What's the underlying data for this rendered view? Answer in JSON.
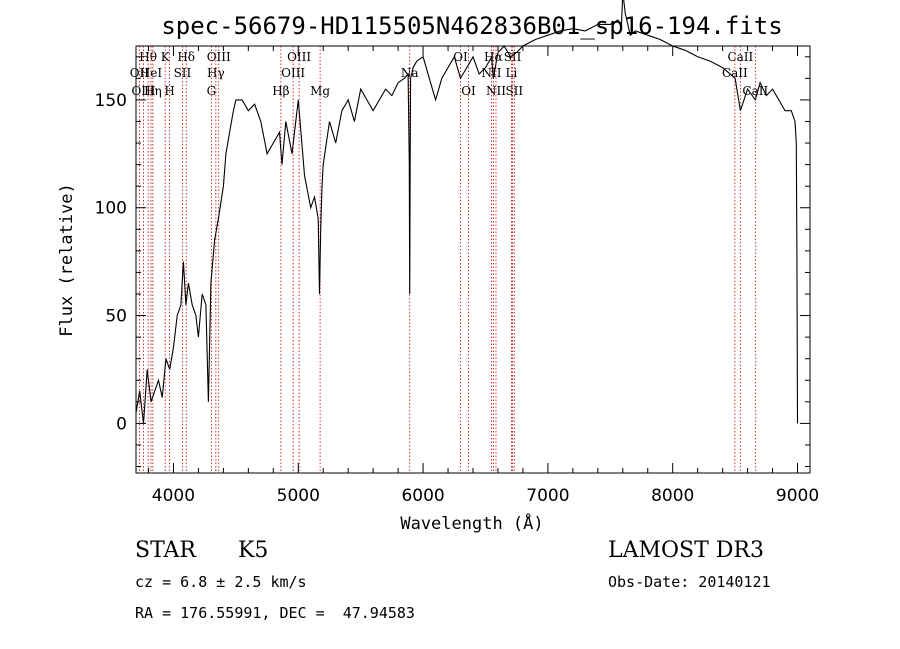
{
  "chart_data": {
    "type": "line",
    "title": "spec-56679-HD115505N462836B01_sp16-194.fits",
    "xlabel": "Wavelength (Å)",
    "ylabel": "Flux (relative)",
    "xlim": [
      3700,
      9100
    ],
    "ylim": [
      -23,
      175
    ],
    "xticks": [
      4000,
      5000,
      6000,
      7000,
      8000,
      9000
    ],
    "yticks": [
      0,
      50,
      100,
      150
    ],
    "series": [
      {
        "x": [
          3700,
          3730,
          3760,
          3790,
          3820,
          3850,
          3880,
          3910,
          3940,
          3970,
          4000,
          4030,
          4060,
          4080,
          4100,
          4120,
          4150,
          4180,
          4200,
          4230,
          4260,
          4280,
          4300,
          4330,
          4360,
          4400,
          4420,
          4450,
          4480,
          4500,
          4550,
          4600,
          4650,
          4700,
          4750,
          4800,
          4850,
          4870,
          4900,
          4950,
          5000,
          5050,
          5100,
          5130,
          5160,
          5170,
          5180,
          5190,
          5200,
          5250,
          5300,
          5350,
          5400,
          5450,
          5500,
          5550,
          5600,
          5650,
          5700,
          5750,
          5800,
          5850,
          5880,
          5890,
          5893,
          5897,
          5900,
          5920,
          5950,
          6000,
          6050,
          6100,
          6150,
          6200,
          6250,
          6300,
          6350,
          6400,
          6450,
          6500,
          6550,
          6562,
          6600,
          6650,
          6700,
          6750,
          6800,
          6900,
          7000,
          7100,
          7200,
          7300,
          7400,
          7500,
          7560,
          7590,
          7600,
          7620,
          7640,
          7660,
          7700,
          7800,
          7900,
          8000,
          8100,
          8200,
          8300,
          8400,
          8500,
          8542,
          8600,
          8662,
          8700,
          8750,
          8800,
          8850,
          8900,
          8950,
          8980,
          8990,
          8995,
          9000
        ],
        "values": [
          5,
          15,
          0,
          25,
          10,
          15,
          20,
          12,
          30,
          25,
          35,
          50,
          55,
          75,
          55,
          65,
          55,
          50,
          40,
          60,
          55,
          10,
          65,
          85,
          95,
          110,
          125,
          135,
          145,
          150,
          150,
          145,
          148,
          140,
          125,
          130,
          135,
          120,
          140,
          125,
          150,
          115,
          100,
          105,
          95,
          60,
          90,
          110,
          120,
          140,
          130,
          145,
          150,
          140,
          155,
          150,
          145,
          150,
          155,
          152,
          158,
          160,
          162,
          120,
          60,
          125,
          160,
          165,
          168,
          170,
          160,
          150,
          160,
          165,
          170,
          160,
          165,
          170,
          162,
          165,
          170,
          160,
          172,
          175,
          170,
          172,
          175,
          178,
          180,
          182,
          183,
          182,
          185,
          185,
          187,
          185,
          200,
          190,
          185,
          180,
          182,
          180,
          178,
          175,
          173,
          170,
          168,
          165,
          160,
          145,
          155,
          150,
          158,
          152,
          155,
          150,
          145,
          145,
          140,
          130,
          80,
          0
        ]
      }
    ],
    "spectral_lines": [
      {
        "name": "Hθ",
        "wavelength": 3797,
        "row": 1
      },
      {
        "name": "OII",
        "wavelength": 3727,
        "row": 2
      },
      {
        "name": "OIII",
        "wavelength": 3760,
        "row": 3
      },
      {
        "name": "HeI",
        "wavelength": 3820,
        "row": 2
      },
      {
        "name": "Hη",
        "wavelength": 3835,
        "row": 3
      },
      {
        "name": "K",
        "wavelength": 3934,
        "row": 1
      },
      {
        "name": "SII",
        "wavelength": 4072,
        "row": 2
      },
      {
        "name": "H",
        "wavelength": 3969,
        "row": 3
      },
      {
        "name": "Hδ",
        "wavelength": 4102,
        "row": 1
      },
      {
        "name": "OIII",
        "wavelength": 4363,
        "row": 1
      },
      {
        "name": "Hγ",
        "wavelength": 4340,
        "row": 2
      },
      {
        "name": "G",
        "wavelength": 4304,
        "row": 3
      },
      {
        "name": "Hβ",
        "wavelength": 4861,
        "row": 3
      },
      {
        "name": "OIII",
        "wavelength": 5007,
        "row": 1
      },
      {
        "name": "OIII",
        "wavelength": 4959,
        "row": 2
      },
      {
        "name": "Mg",
        "wavelength": 5175,
        "row": 3
      },
      {
        "name": "Na",
        "wavelength": 5893,
        "row": 2
      },
      {
        "name": "OI",
        "wavelength": 6300,
        "row": 1
      },
      {
        "name": "OI",
        "wavelength": 6364,
        "row": 3
      },
      {
        "name": "Hα",
        "wavelength": 6563,
        "row": 1
      },
      {
        "name": "NII",
        "wavelength": 6548,
        "row": 2
      },
      {
        "name": "NII",
        "wavelength": 6584,
        "row": 3
      },
      {
        "name": "SII",
        "wavelength": 6717,
        "row": 1
      },
      {
        "name": "Li",
        "wavelength": 6708,
        "row": 2
      },
      {
        "name": "SII",
        "wavelength": 6731,
        "row": 3
      },
      {
        "name": "CaII",
        "wavelength": 8542,
        "row": 1
      },
      {
        "name": "CaII",
        "wavelength": 8498,
        "row": 2
      },
      {
        "name": "CaII",
        "wavelength": 8662,
        "row": 3
      }
    ]
  },
  "info": {
    "object_class": "STAR",
    "subclass": "K5",
    "survey": "LAMOST DR3",
    "cz": "cz = 6.8 ± 2.5 km/s",
    "obs_date": "Obs-Date: 20140121",
    "radec": "RA = 176.55991, DEC =  47.94583"
  }
}
